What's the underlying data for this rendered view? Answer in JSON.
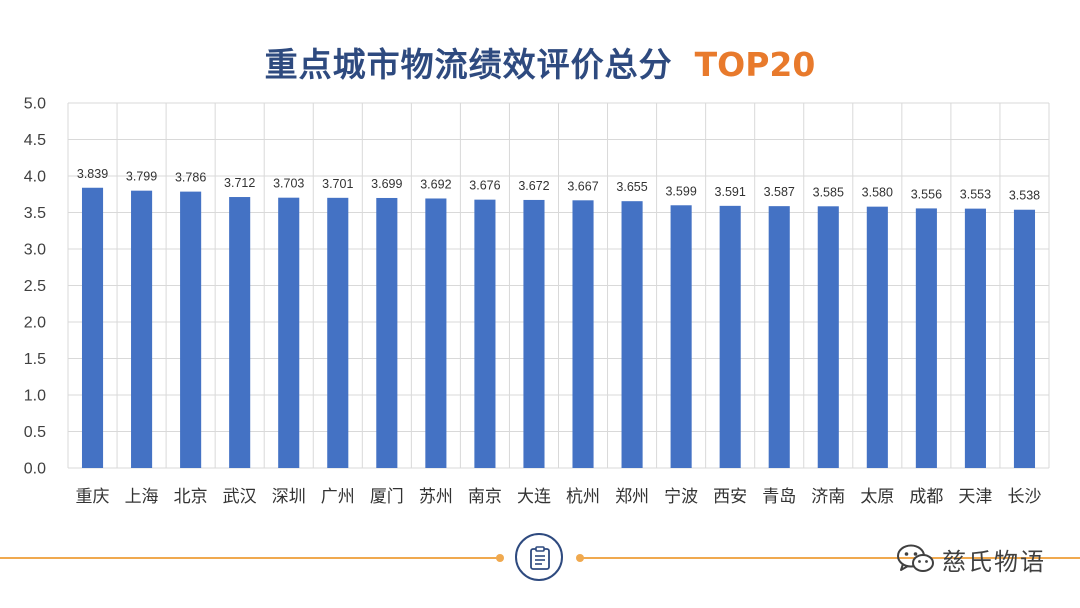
{
  "title": {
    "main": "重点城市物流绩效评价总分",
    "suffix": "TOP20"
  },
  "colors": {
    "bar": "#4472c4",
    "title": "#2e4a7f",
    "accent": "#e87a2c",
    "grid": "#d9d9d9",
    "footer_line": "#f0a94f"
  },
  "chart_data": {
    "type": "bar",
    "title": "重点城市物流绩效评价总分 TOP20",
    "categories": [
      "重庆",
      "上海",
      "北京",
      "武汉",
      "深圳",
      "广州",
      "厦门",
      "苏州",
      "南京",
      "大连",
      "杭州",
      "郑州",
      "宁波",
      "西安",
      "青岛",
      "济南",
      "太原",
      "成都",
      "天津",
      "长沙"
    ],
    "values": [
      3.839,
      3.799,
      3.786,
      3.712,
      3.703,
      3.701,
      3.699,
      3.692,
      3.676,
      3.672,
      3.667,
      3.655,
      3.599,
      3.591,
      3.587,
      3.585,
      3.58,
      3.556,
      3.553,
      3.538
    ],
    "value_labels": [
      "3.839",
      "3.799",
      "3.786",
      "3.712",
      "3.703",
      "3.701",
      "3.699",
      "3.692",
      "3.676",
      "3.672",
      "3.667",
      "3.655",
      "3.599",
      "3.591",
      "3.587",
      "3.585",
      "3.580",
      "3.556",
      "3.553",
      "3.538"
    ],
    "ylim": [
      0,
      5
    ],
    "yticks": [
      "0.0",
      "0.5",
      "1.0",
      "1.5",
      "2.0",
      "2.5",
      "3.0",
      "3.5",
      "4.0",
      "4.5",
      "5.0"
    ],
    "xlabel": "",
    "ylabel": "",
    "grid": true,
    "legend": "none"
  },
  "footer": {
    "icon": "clipboard-icon",
    "watermark_icon": "wechat-icon",
    "watermark_text": "慈氏物语"
  }
}
